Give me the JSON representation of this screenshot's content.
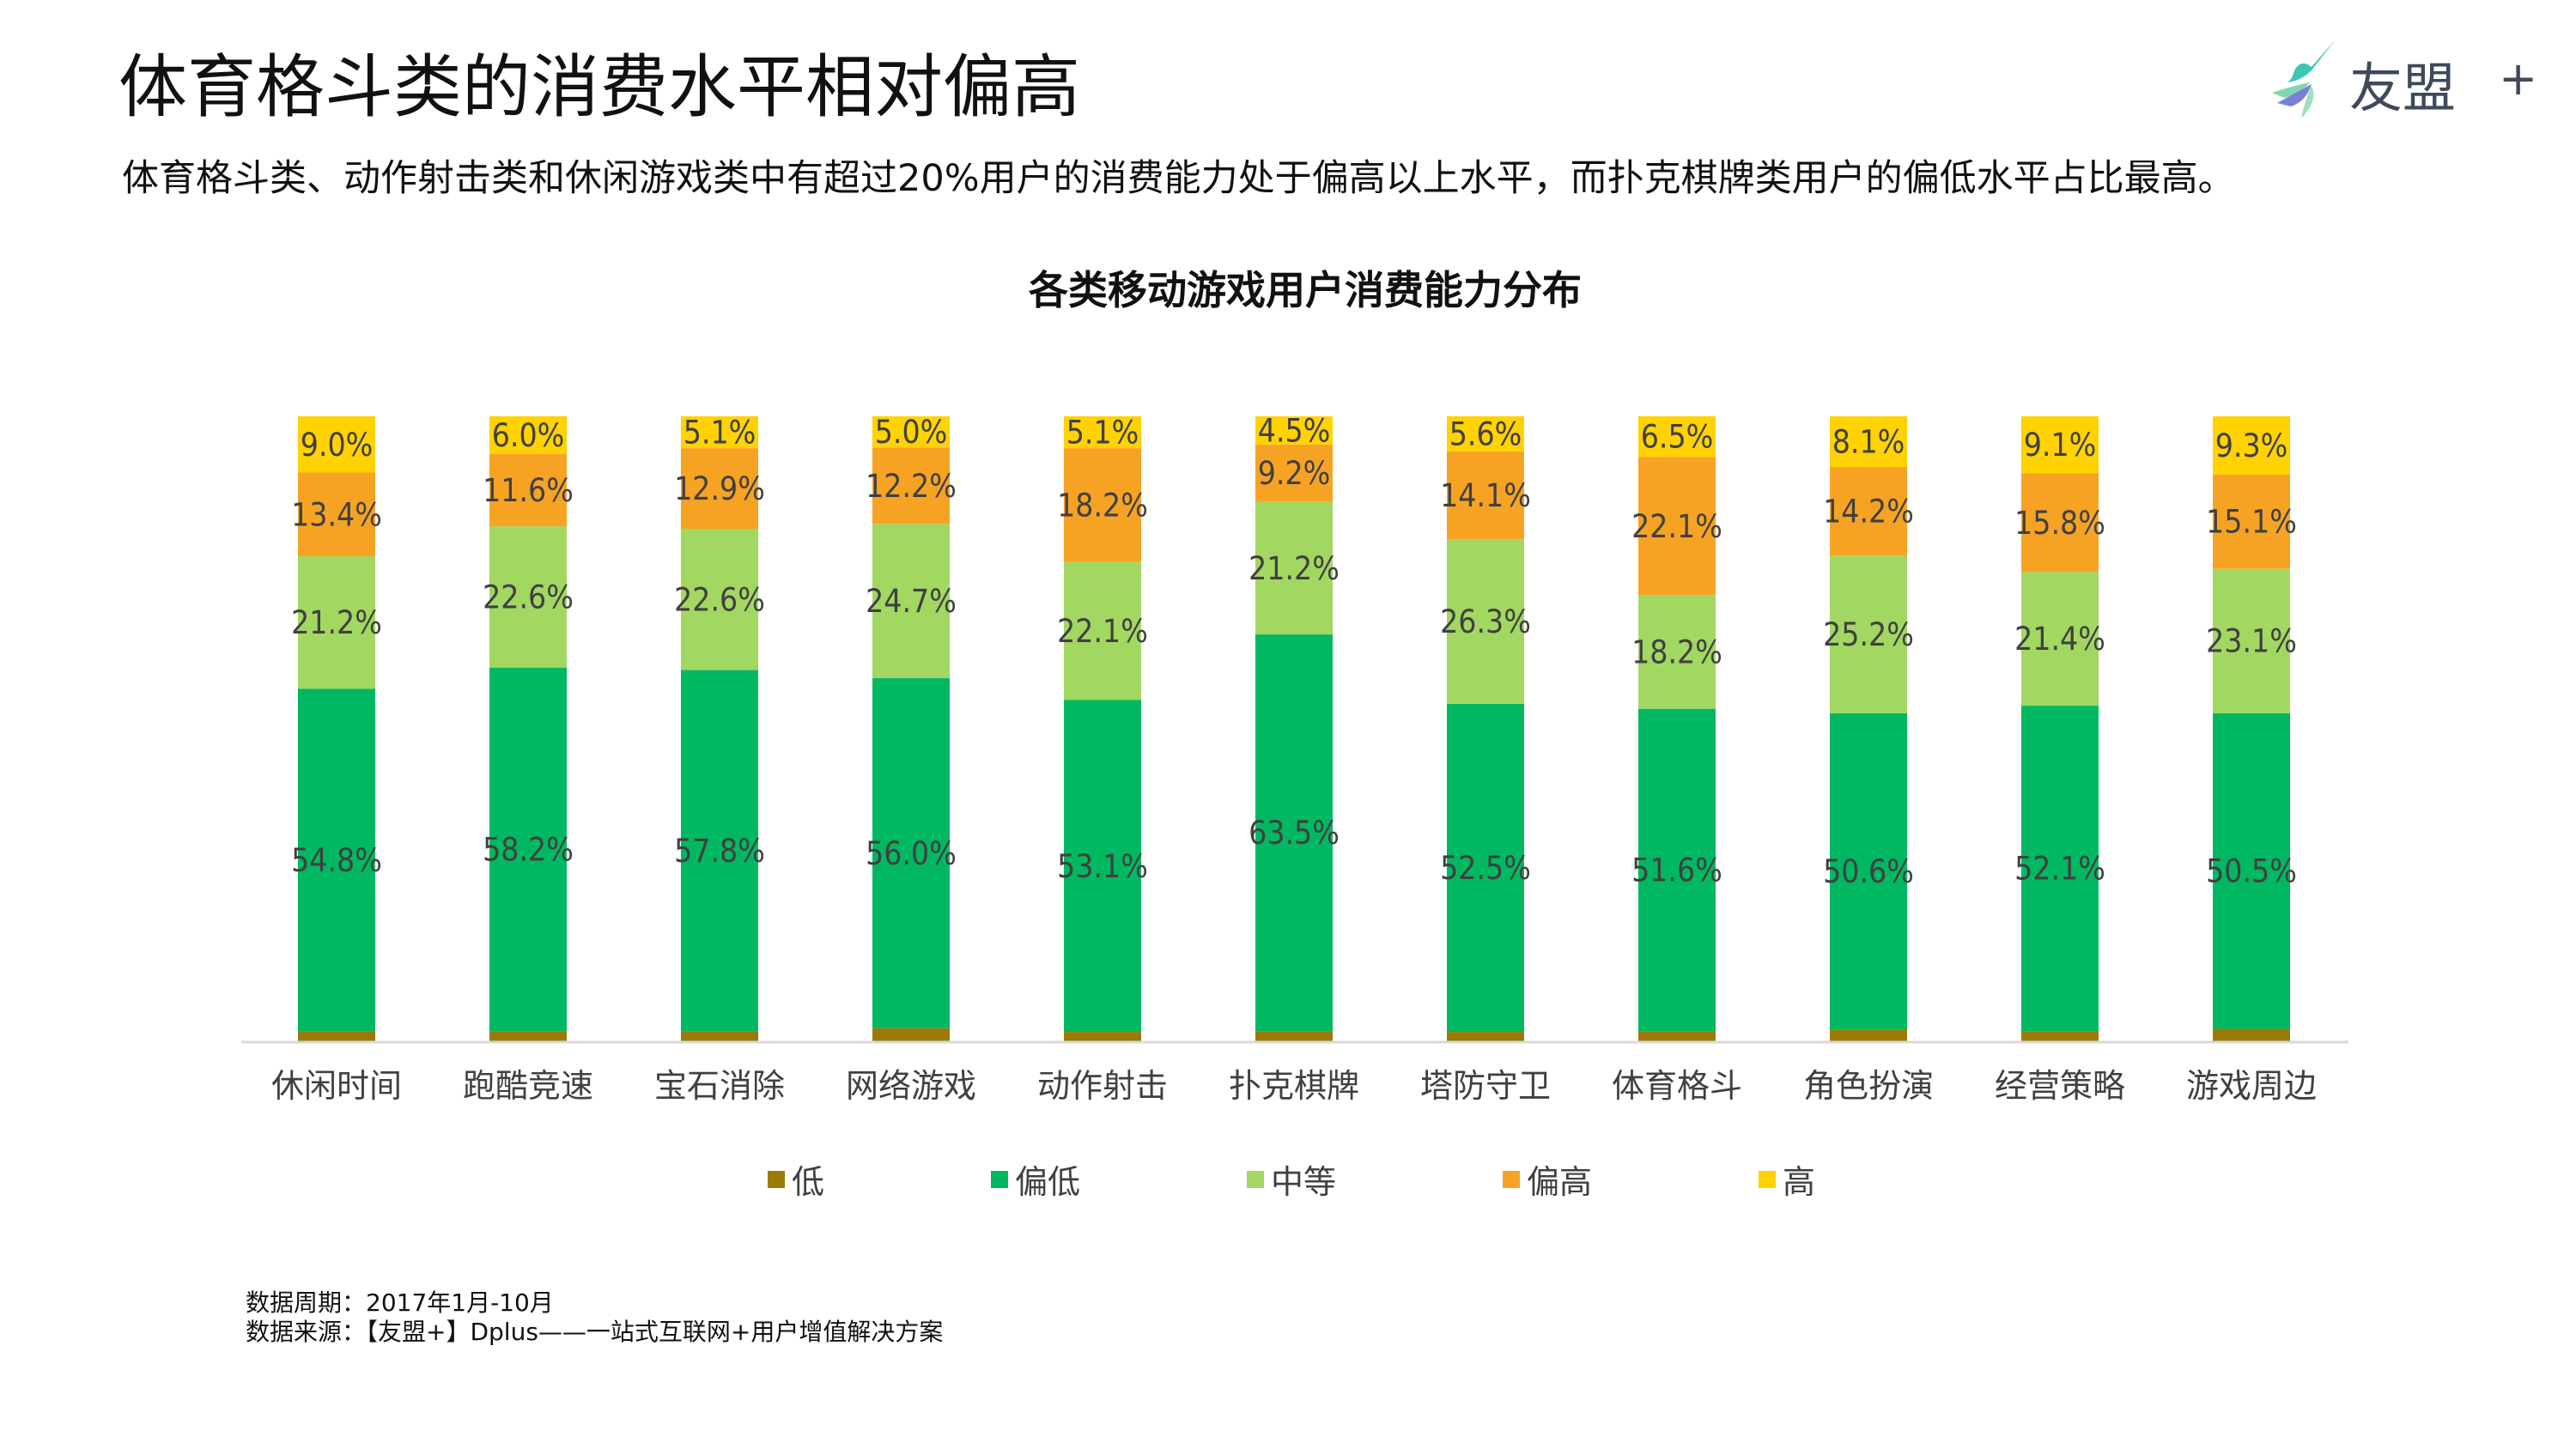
{
  "header": {
    "title": "体育格斗类的消费水平相对偏高",
    "subtitle": "体育格斗类、动作射击类和休闲游戏类中有超过20%用户的消费能力处于偏高以上水平，而扑克棋牌类用户的偏低水平占比最高。",
    "logo_text": "友盟",
    "logo_plus": "+"
  },
  "chart_data": {
    "type": "bar",
    "stacked": true,
    "title": "各类移动游戏用户消费能力分布",
    "xlabel": "",
    "ylabel": "",
    "ylim": [
      0,
      100
    ],
    "grid": false,
    "legend_position": "bottom",
    "categories": [
      "休闲时间",
      "跑酷竞速",
      "宝石消除",
      "网络游戏",
      "动作射击",
      "扑克棋牌",
      "塔防守卫",
      "体育格斗",
      "角色扮演",
      "经营策略",
      "游戏周边"
    ],
    "series": [
      {
        "name": "低",
        "color": "#9c7a08",
        "labeled": false,
        "values": [
          1.6,
          1.6,
          1.6,
          2.1,
          1.5,
          1.6,
          1.5,
          1.6,
          1.9,
          1.6,
          2.0
        ]
      },
      {
        "name": "偏低",
        "color": "#00b862",
        "labeled": true,
        "values": [
          54.8,
          58.2,
          57.8,
          56.0,
          53.1,
          63.5,
          52.5,
          51.6,
          50.6,
          52.1,
          50.5
        ]
      },
      {
        "name": "中等",
        "color": "#a2d762",
        "labeled": true,
        "values": [
          21.2,
          22.6,
          22.6,
          24.7,
          22.1,
          21.2,
          26.3,
          18.2,
          25.2,
          21.4,
          23.1
        ]
      },
      {
        "name": "偏高",
        "color": "#f6a324",
        "labeled": true,
        "values": [
          13.4,
          11.6,
          12.9,
          12.2,
          18.2,
          9.2,
          14.1,
          22.1,
          14.2,
          15.8,
          15.1
        ]
      },
      {
        "name": "高",
        "color": "#ffd200",
        "labeled": true,
        "values": [
          9.0,
          6.0,
          5.1,
          5.0,
          5.1,
          4.5,
          5.6,
          6.5,
          8.1,
          9.1,
          9.3
        ]
      }
    ],
    "value_suffix": "%"
  },
  "footnote": {
    "period": "数据周期：2017年1月-10月",
    "source": "数据来源：【友盟+】Dplus——一站式互联网+用户增值解决方案"
  }
}
